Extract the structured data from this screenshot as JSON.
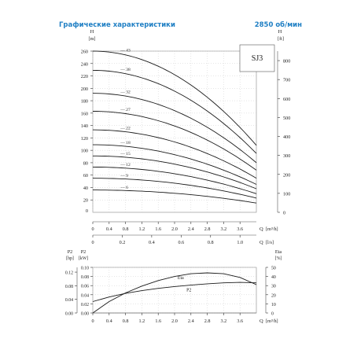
{
  "header": {
    "title": "Графические характеристики",
    "speed": "2850 об/мин"
  },
  "chart_data": [
    {
      "type": "line",
      "name_box": "SJ3",
      "y_left_label": "H",
      "y_left_unit": "[m]",
      "y_right_label": "H",
      "y_right_unit": "[ft]",
      "x_label": "Q",
      "x_unit": "[m³/h]",
      "x2_label": "Q",
      "x2_unit": "[l/s]",
      "xlim": [
        0,
        4
      ],
      "ylim": [
        0,
        260
      ],
      "y_right_lim": [
        0,
        850
      ],
      "x_ticks": [
        0,
        0.4,
        0.8,
        1.2,
        1.6,
        2.0,
        2.4,
        2.8,
        3.2,
        3.6
      ],
      "y_ticks": [
        20,
        40,
        60,
        80,
        100,
        120,
        140,
        160,
        180,
        200,
        220,
        240,
        260
      ],
      "y_right_ticks": [
        0,
        100,
        200,
        300,
        400,
        500,
        600,
        700,
        800
      ],
      "x2_ticks": [
        0,
        0.2,
        0.4,
        0.6,
        0.8,
        1.0
      ],
      "series": [
        {
          "name": "43",
          "x": [
            0,
            4.0
          ],
          "y": [
            260,
            108
          ]
        },
        {
          "name": "38",
          "x": [
            0,
            4.0
          ],
          "y": [
            229,
            95
          ]
        },
        {
          "name": "32",
          "x": [
            0,
            4.0
          ],
          "y": [
            192,
            80
          ]
        },
        {
          "name": "27",
          "x": [
            0,
            4.0
          ],
          "y": [
            163,
            68
          ]
        },
        {
          "name": "22",
          "x": [
            0,
            4.0
          ],
          "y": [
            133,
            55
          ]
        },
        {
          "name": "18",
          "x": [
            0,
            4.0
          ],
          "y": [
            109,
            45
          ]
        },
        {
          "name": "15",
          "x": [
            0,
            4.0
          ],
          "y": [
            91,
            38
          ]
        },
        {
          "name": "12",
          "x": [
            0,
            4.0
          ],
          "y": [
            73,
            30
          ]
        },
        {
          "name": "9",
          "x": [
            0,
            4.0
          ],
          "y": [
            55,
            23
          ]
        },
        {
          "name": "6",
          "x": [
            0,
            4.0
          ],
          "y": [
            36,
            15
          ]
        }
      ]
    },
    {
      "type": "line",
      "y_p2_label": "P2",
      "y_p2_unit": "[kW]",
      "y_p2hp_label": "P2",
      "y_p2hp_unit": "[hp]",
      "y_eta_label": "Eta",
      "y_eta_unit": "[%]",
      "x_label": "Q",
      "x_unit": "[m³/h]",
      "xlim": [
        0,
        4
      ],
      "ylim": [
        0,
        0.1
      ],
      "y_eta_lim": [
        0,
        50
      ],
      "x_ticks": [
        0,
        0.4,
        0.8,
        1.2,
        1.6,
        2.0,
        2.4,
        2.8,
        3.2,
        3.6
      ],
      "y_ticks": [
        0.0,
        0.02,
        0.04,
        0.06,
        0.08,
        0.1
      ],
      "y_hp_ticks": [
        0.0,
        0.04,
        0.08,
        0.12
      ],
      "y_eta_ticks": [
        0,
        10,
        20,
        30,
        40,
        50
      ],
      "series": [
        {
          "name": "Eta",
          "x": [
            0,
            0.4,
            0.8,
            1.2,
            1.6,
            2.0,
            2.4,
            2.8,
            3.2,
            3.6,
            4.0
          ],
          "y": [
            0,
            12.5,
            22,
            29.5,
            35.5,
            40,
            43,
            44,
            43,
            39,
            31
          ]
        },
        {
          "name": "P2",
          "x": [
            0,
            0.4,
            0.8,
            1.2,
            1.6,
            2.0,
            2.4,
            2.8,
            3.2,
            3.6,
            4.0
          ],
          "y": [
            0.025,
            0.035,
            0.043,
            0.049,
            0.054,
            0.058,
            0.061,
            0.064,
            0.066,
            0.067,
            0.066
          ]
        }
      ]
    }
  ]
}
